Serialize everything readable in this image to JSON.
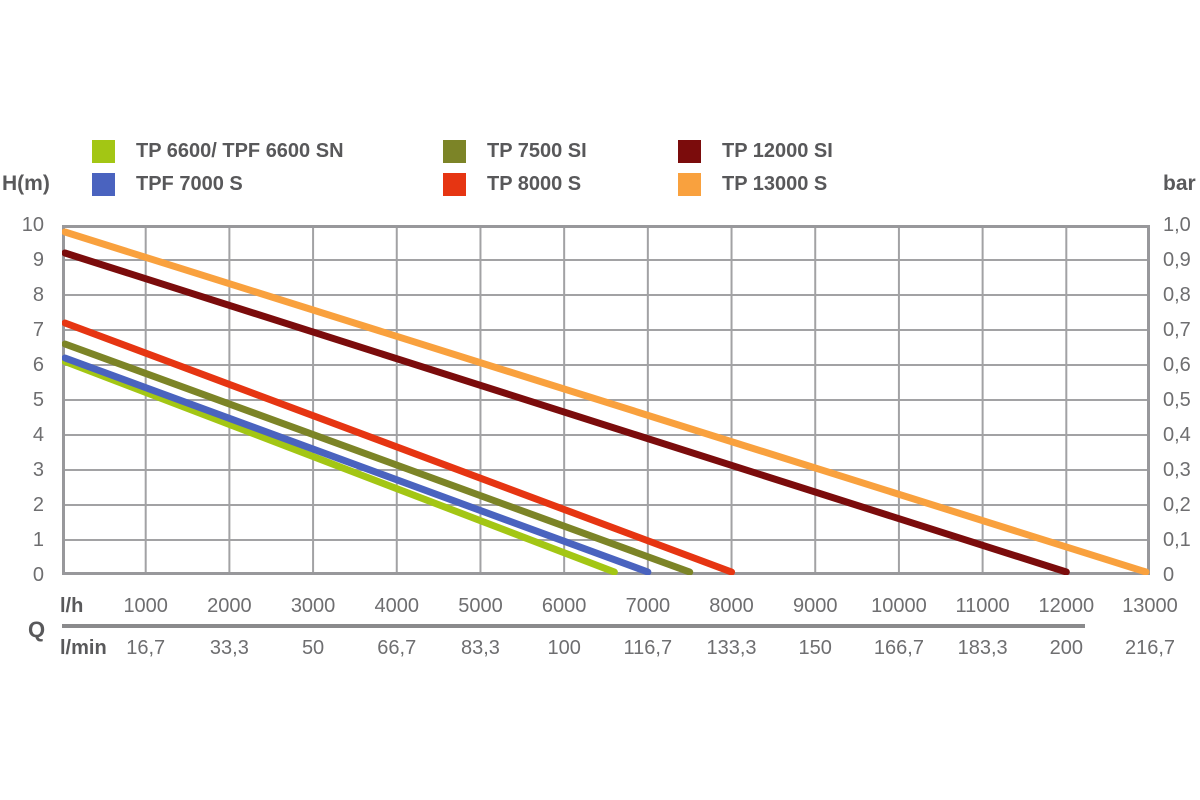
{
  "labels": {
    "y_left_axis": "H(m)",
    "y_right_axis": "bar",
    "q_axis": "Q",
    "flow_unit_hour": "l/h",
    "flow_unit_minute": "l/min"
  },
  "colors": {
    "grid": "#A2A2A4",
    "plot_border": "#98989B",
    "axis_line": "#8A8A8C",
    "tick_text": "#6E6E70",
    "label_text": "#59595B",
    "legend_text": "#58585A"
  },
  "chart_data": {
    "type": "line",
    "title": "",
    "legend_position": "top",
    "grid": true,
    "x_axis": {
      "label": "Q",
      "range_lh": [
        0,
        13000
      ],
      "grid_step_lh": 1000,
      "unit_rows": [
        {
          "unit": "l/h",
          "ticks": [
            "1000",
            "2000",
            "3000",
            "4000",
            "5000",
            "6000",
            "7000",
            "8000",
            "9000",
            "10000",
            "11000",
            "12000",
            "13000"
          ]
        },
        {
          "unit": "l/min",
          "ticks": [
            "16,7",
            "33,3",
            "50",
            "66,7",
            "83,3",
            "100",
            "116,7",
            "133,3",
            "150",
            "166,7",
            "183,3",
            "200",
            "216,7"
          ]
        }
      ]
    },
    "y_left_axis": {
      "label": "H(m)",
      "range": [
        0,
        10
      ],
      "grid_step": 1,
      "ticks": [
        "10",
        "9",
        "8",
        "7",
        "6",
        "5",
        "4",
        "3",
        "2",
        "1",
        "0"
      ]
    },
    "y_right_axis": {
      "label": "bar",
      "range": [
        0,
        1
      ],
      "ticks": [
        "1,0",
        "0,9",
        "0,8",
        "0,7",
        "0,6",
        "0,5",
        "0,4",
        "0,3",
        "0,2",
        "0,1",
        "0"
      ]
    },
    "series": [
      {
        "name": "TP 6600/ TPF 6600 SN",
        "color": "#A3C614",
        "points": [
          [
            0,
            6.1
          ],
          [
            6600,
            0
          ]
        ]
      },
      {
        "name": "TPF 7000 S",
        "color": "#4A63BF",
        "points": [
          [
            0,
            6.2
          ],
          [
            7000,
            0
          ]
        ]
      },
      {
        "name": "TP 7500 SI",
        "color": "#7C8427",
        "points": [
          [
            0,
            6.6
          ],
          [
            7500,
            0
          ]
        ]
      },
      {
        "name": "TP 8000 S",
        "color": "#E63512",
        "points": [
          [
            0,
            7.2
          ],
          [
            8000,
            0
          ]
        ]
      },
      {
        "name": "TP 12000 SI",
        "color": "#7B0C0C",
        "points": [
          [
            0,
            9.2
          ],
          [
            12000,
            0
          ]
        ]
      },
      {
        "name": "TP 13000 S",
        "color": "#F9A13E",
        "points": [
          [
            0,
            9.8
          ],
          [
            13000,
            0
          ]
        ]
      }
    ]
  }
}
